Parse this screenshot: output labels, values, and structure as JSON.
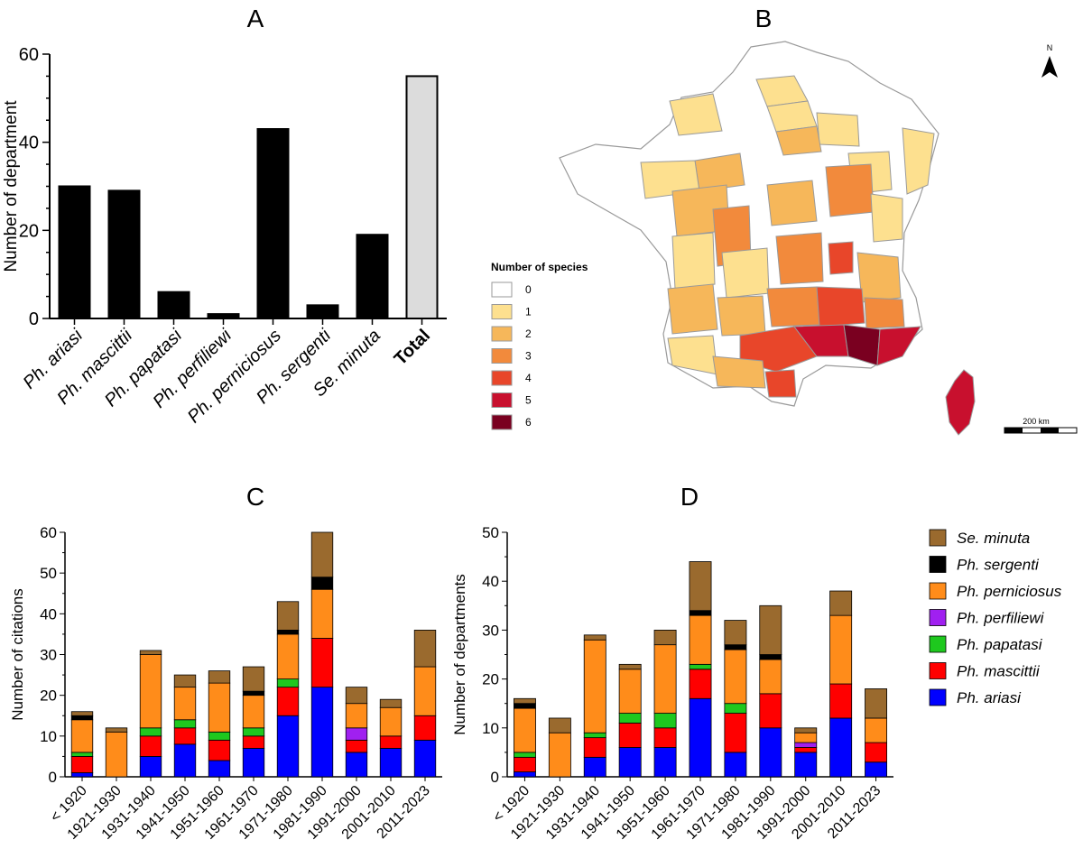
{
  "panels": {
    "A": "A",
    "B": "B",
    "C": "C",
    "D": "D"
  },
  "colors": {
    "Se. minuta": "#9a6a2e",
    "Ph. sergenti": "#000000",
    "Ph. perniciosus": "#ff8c1a",
    "Ph. perfiliewi": "#a020f0",
    "Ph. papatasi": "#1ec81e",
    "Ph. mascittii": "#ff0000",
    "Ph. ariasi": "#0000ff",
    "total_bar": "#dcdcdc"
  },
  "chart_data": [
    {
      "id": "A",
      "type": "bar",
      "ylabel": "Number of department",
      "ylim": [
        0,
        60
      ],
      "yticks": [
        0,
        20,
        40,
        60
      ],
      "categories": [
        "Ph. ariasi",
        "Ph. mascittii",
        "Ph. papatasi",
        "Ph. perfiliewi",
        "Ph. perniciosus",
        "Ph. sergenti",
        "Se. minuta",
        "Total"
      ],
      "values": [
        30,
        29,
        6,
        1,
        43,
        3,
        19,
        55
      ]
    },
    {
      "id": "C",
      "type": "bar",
      "stacked": true,
      "ylabel": "Number of citations",
      "ylim": [
        0,
        60
      ],
      "yticks": [
        0,
        10,
        20,
        30,
        40,
        50,
        60
      ],
      "categories": [
        "< 1920",
        "1921-1930",
        "1931-1940",
        "1941-1950",
        "1951-1960",
        "1961-1970",
        "1971-1980",
        "1981-1990",
        "1991-2000",
        "2001-2010",
        "2011-2023"
      ],
      "series": [
        {
          "name": "Ph. ariasi",
          "values": [
            1,
            0,
            5,
            8,
            4,
            7,
            15,
            22,
            6,
            7,
            9
          ]
        },
        {
          "name": "Ph. mascittii",
          "values": [
            4,
            0,
            5,
            4,
            5,
            3,
            7,
            12,
            3,
            3,
            6
          ]
        },
        {
          "name": "Ph. papatasi",
          "values": [
            1,
            0,
            2,
            2,
            2,
            2,
            2,
            0,
            0,
            0,
            0
          ]
        },
        {
          "name": "Ph. perfiliewi",
          "values": [
            0,
            0,
            0,
            0,
            0,
            0,
            0,
            0,
            3,
            0,
            0
          ]
        },
        {
          "name": "Ph. perniciosus",
          "values": [
            8,
            11,
            18,
            8,
            12,
            8,
            11,
            12,
            6,
            7,
            12
          ]
        },
        {
          "name": "Ph. sergenti",
          "values": [
            1,
            0,
            0,
            0,
            0,
            1,
            1,
            3,
            0,
            0,
            0
          ]
        },
        {
          "name": "Se. minuta",
          "values": [
            1,
            1,
            1,
            3,
            3,
            6,
            7,
            11,
            4,
            2,
            9
          ]
        }
      ]
    },
    {
      "id": "D",
      "type": "bar",
      "stacked": true,
      "ylabel": "Number of departments",
      "ylim": [
        0,
        50
      ],
      "yticks": [
        0,
        10,
        20,
        30,
        40,
        50
      ],
      "categories": [
        "< 1920",
        "1921-1930",
        "1931-1940",
        "1941-1950",
        "1951-1960",
        "1961-1970",
        "1971-1980",
        "1981-1990",
        "1991-2000",
        "2001-2010",
        "2011-2023"
      ],
      "series": [
        {
          "name": "Ph. ariasi",
          "values": [
            1,
            0,
            4,
            6,
            6,
            16,
            5,
            10,
            5,
            12,
            3
          ]
        },
        {
          "name": "Ph. mascittii",
          "values": [
            3,
            0,
            4,
            5,
            4,
            6,
            8,
            7,
            1,
            7,
            4
          ]
        },
        {
          "name": "Ph. papatasi",
          "values": [
            1,
            0,
            1,
            2,
            3,
            1,
            2,
            0,
            0,
            0,
            0
          ]
        },
        {
          "name": "Ph. perfiliewi",
          "values": [
            0,
            0,
            0,
            0,
            0,
            0,
            0,
            0,
            1,
            0,
            0
          ]
        },
        {
          "name": "Ph. perniciosus",
          "values": [
            9,
            9,
            19,
            9,
            14,
            10,
            11,
            7,
            2,
            14,
            5
          ]
        },
        {
          "name": "Ph. sergenti",
          "values": [
            1,
            0,
            0,
            0,
            0,
            1,
            1,
            1,
            0,
            0,
            0
          ]
        },
        {
          "name": "Se. minuta",
          "values": [
            1,
            3,
            1,
            1,
            3,
            10,
            5,
            10,
            1,
            5,
            6
          ]
        }
      ]
    }
  ],
  "legend": {
    "order": [
      "Se. minuta",
      "Ph. sergenti",
      "Ph. perniciosus",
      "Ph. perfiliewi",
      "Ph. papatasi",
      "Ph. mascittii",
      "Ph. ariasi"
    ]
  },
  "map": {
    "legend_title": "Number of species",
    "classes": [
      {
        "label": "0",
        "color": "#ffffff"
      },
      {
        "label": "1",
        "color": "#fde08f"
      },
      {
        "label": "2",
        "color": "#f6b75a"
      },
      {
        "label": "3",
        "color": "#f28a3c"
      },
      {
        "label": "4",
        "color": "#e8462a"
      },
      {
        "label": "5",
        "color": "#c8102e"
      },
      {
        "label": "6",
        "color": "#7a0020"
      }
    ],
    "north_label": "N",
    "scale_label": "200 km"
  }
}
